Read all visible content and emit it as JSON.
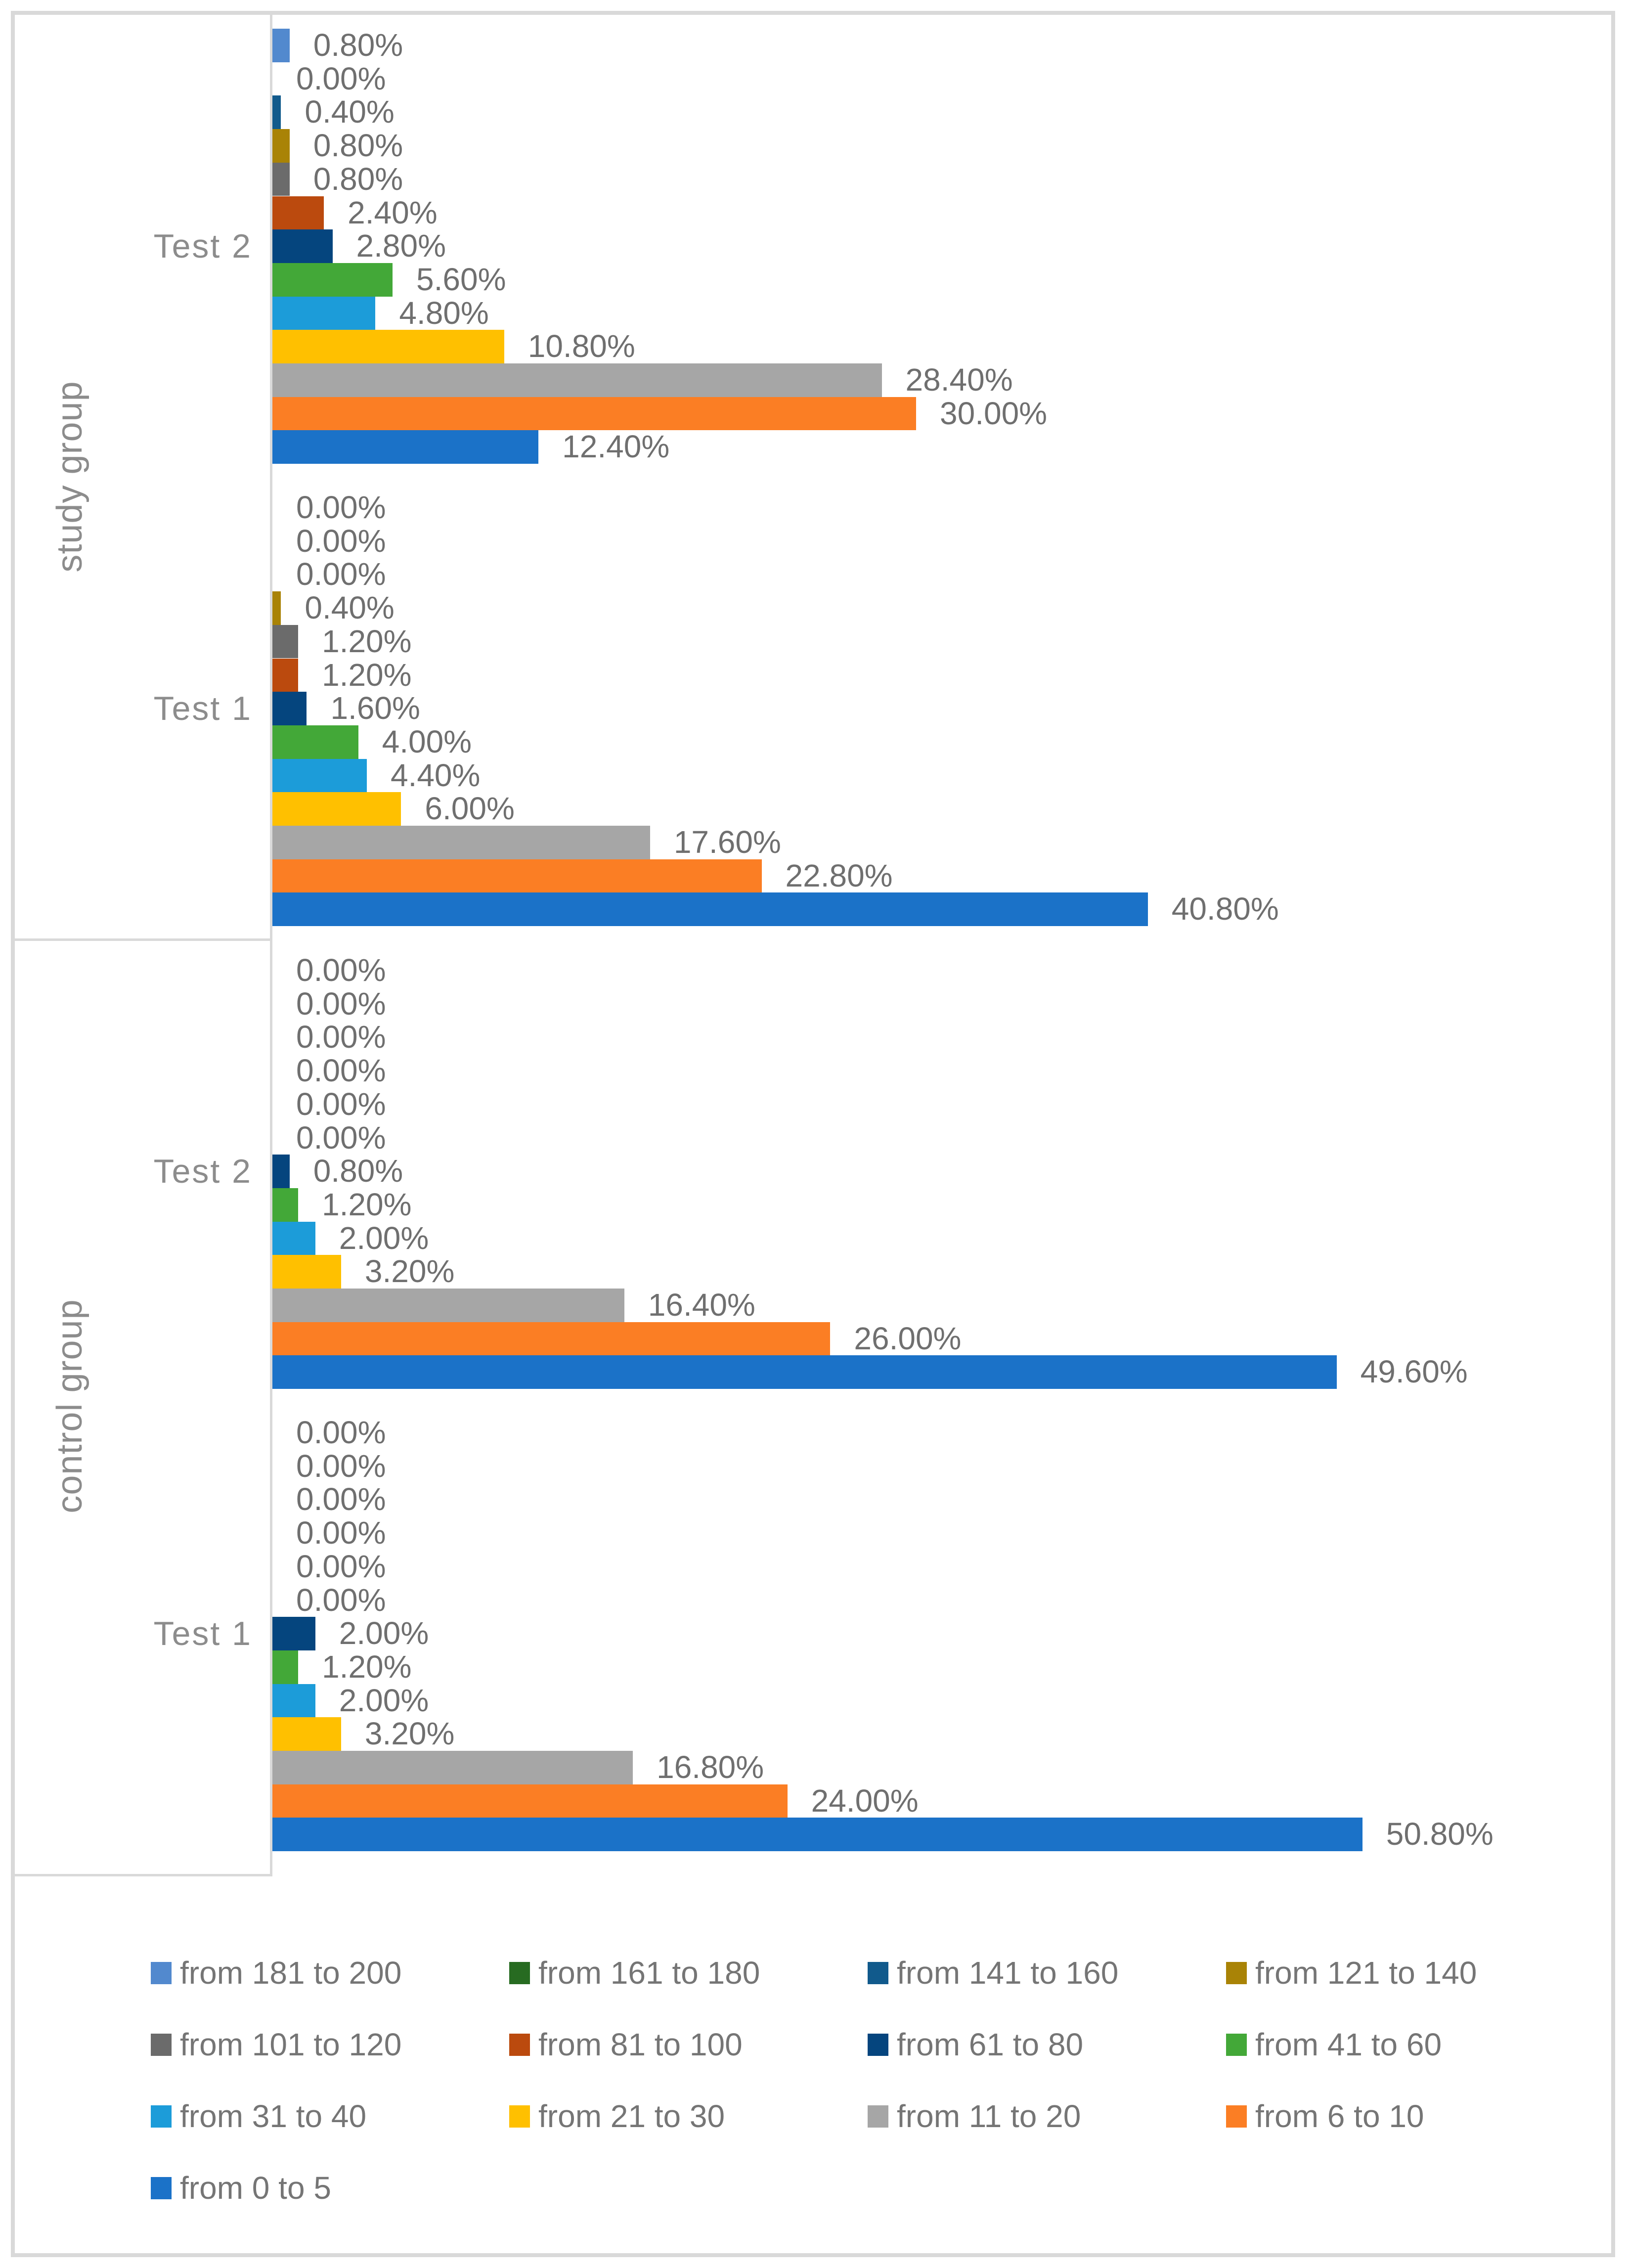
{
  "chart_data": {
    "type": "bar",
    "orientation": "horizontal",
    "title": "",
    "xlabel": "",
    "ylabel": "",
    "data_labels": "percent, two decimals, outside end of bars",
    "series": [
      {
        "name": "from 181 to 200",
        "color": "#5289CE"
      },
      {
        "name": "from 161 to 180",
        "color": "#276B21"
      },
      {
        "name": "from 141 to 160",
        "color": "#115A8C"
      },
      {
        "name": "from 121 to 140",
        "color": "#A98306"
      },
      {
        "name": "from 101 to 120",
        "color": "#6B6B6B"
      },
      {
        "name": "from 81 to 100",
        "color": "#BB4A0E"
      },
      {
        "name": "from 61 to 80",
        "color": "#05457E"
      },
      {
        "name": "from 41 to 60",
        "color": "#43A838"
      },
      {
        "name": "from 31 to 40",
        "color": "#1C9CD9"
      },
      {
        "name": "from 21 to 30",
        "color": "#FFC000"
      },
      {
        "name": "from 11 to 20",
        "color": "#A6A6A6"
      },
      {
        "name": "from 6 to 10",
        "color": "#FB7E24"
      },
      {
        "name": "from 0 to 5",
        "color": "#1B72C8"
      }
    ],
    "groups": [
      {
        "label": "study group",
        "clusters": [
          {
            "test": "Test 2",
            "values": [
              0.8,
              0.0,
              0.4,
              0.8,
              0.8,
              2.4,
              2.8,
              5.6,
              4.8,
              10.8,
              28.4,
              30.0,
              12.4
            ],
            "labels": [
              "0.80%",
              "0.00%",
              "0.40%",
              "0.80%",
              "0.80%",
              "2.40%",
              "2.80%",
              "5.60%",
              "4.80%",
              "10.80%",
              "28.40%",
              "30.00%",
              "12.40%"
            ]
          },
          {
            "test": "Test 1",
            "values": [
              0.0,
              0.0,
              0.0,
              0.4,
              1.2,
              1.2,
              1.6,
              4.0,
              4.4,
              6.0,
              17.6,
              22.8,
              40.8
            ],
            "labels": [
              "0.00%",
              "0.00%",
              "0.00%",
              "0.40%",
              "1.20%",
              "1.20%",
              "1.60%",
              "4.00%",
              "4.40%",
              "6.00%",
              "17.60%",
              "22.80%",
              "40.80%"
            ]
          }
        ]
      },
      {
        "label": "control group",
        "clusters": [
          {
            "test": "Test 2",
            "values": [
              0.0,
              0.0,
              0.0,
              0.0,
              0.0,
              0.0,
              0.8,
              1.2,
              2.0,
              3.2,
              16.4,
              26.0,
              49.6
            ],
            "labels": [
              "0.00%",
              "0.00%",
              "0.00%",
              "0.00%",
              "0.00%",
              "0.00%",
              "0.80%",
              "1.20%",
              "2.00%",
              "3.20%",
              "16.40%",
              "26.00%",
              "49.60%"
            ]
          },
          {
            "test": "Test 1",
            "values": [
              0.0,
              0.0,
              0.0,
              0.0,
              0.0,
              0.0,
              2.0,
              1.2,
              2.0,
              3.2,
              16.8,
              24.0,
              50.8
            ],
            "labels": [
              "0.00%",
              "0.00%",
              "0.00%",
              "0.00%",
              "0.00%",
              "0.00%",
              "2.00%",
              "1.20%",
              "2.00%",
              "3.20%",
              "16.80%",
              "24.00%",
              "50.80%"
            ]
          }
        ]
      }
    ],
    "legend": {
      "position": "bottom",
      "items": [
        {
          "label": "from 181 to 200",
          "color": "#5289CE"
        },
        {
          "label": "from 161 to 180",
          "color": "#276B21"
        },
        {
          "label": "from 141 to 160",
          "color": "#115A8C"
        },
        {
          "label": "from 121 to 140",
          "color": "#A98306"
        },
        {
          "label": "from 101 to 120",
          "color": "#6B6B6B"
        },
        {
          "label": "from 81 to 100",
          "color": "#BB4A0E"
        },
        {
          "label": "from 61 to 80",
          "color": "#05457E"
        },
        {
          "label": "from 41 to 60",
          "color": "#43A838"
        },
        {
          "label": "from 31 to 40",
          "color": "#1C9CD9"
        },
        {
          "label": "from 21 to 30",
          "color": "#FFC000"
        },
        {
          "label": "from 11 to 20",
          "color": "#A6A6A6"
        },
        {
          "label": "from 6 to 10",
          "color": "#FB7E24"
        },
        {
          "label": "from 0 to 5",
          "color": "#1B72C8"
        }
      ]
    }
  },
  "colors": {
    "chart_border": "#D9D9D9",
    "axis_line": "#D9D9D9",
    "data_label_text": "#6F6F6F",
    "axis_label_text": "#8C8C8C",
    "legend_text": "#757575",
    "background": "#FFFFFF"
  }
}
